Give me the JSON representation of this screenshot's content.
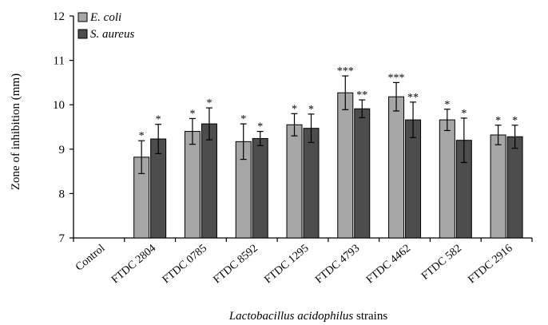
{
  "chart_data": {
    "type": "bar",
    "ylabel": "Zone of inhibition (mm)",
    "xlabel_italic": "Lactobacillus acidophilus",
    "xlabel_rest": " strains",
    "ylim": [
      7,
      12
    ],
    "yticks": [
      "7",
      "8",
      "9",
      "10",
      "11",
      "12"
    ],
    "legend_position": "top-left",
    "categories": [
      "Control",
      "FTDC 2804",
      "FTDC 0785",
      "FTDC 8592",
      "FTDC 1295",
      "FTDC 4793",
      "FTDC 4462",
      "FTDC 582",
      "FTDC 2916"
    ],
    "series": [
      {
        "name": "E. coli",
        "color": "#a6a6a6",
        "values": [
          null,
          8.82,
          9.4,
          9.17,
          9.55,
          10.27,
          10.18,
          9.66,
          9.32
        ],
        "errors": [
          null,
          0.37,
          0.29,
          0.4,
          0.25,
          0.38,
          0.32,
          0.24,
          0.22
        ],
        "significance": [
          "",
          "*",
          "*",
          "*",
          "*",
          "***",
          "***",
          "*",
          "*"
        ]
      },
      {
        "name": "S. aureus",
        "color": "#4d4d4d",
        "values": [
          null,
          9.23,
          9.57,
          9.24,
          9.47,
          9.91,
          9.66,
          9.2,
          9.28
        ],
        "errors": [
          null,
          0.33,
          0.36,
          0.16,
          0.32,
          0.2,
          0.4,
          0.5,
          0.26
        ],
        "significance": [
          "",
          "*",
          "*",
          "*",
          "*",
          "**",
          "**",
          "*",
          "*"
        ]
      }
    ]
  }
}
